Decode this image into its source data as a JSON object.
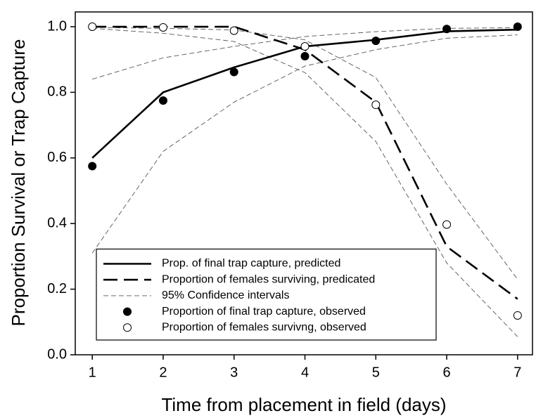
{
  "chart_data": {
    "type": "line",
    "x_label": "Time from placement in field (days)",
    "y_label": "Proportion Survival or Trap Capture",
    "x": [
      1,
      2,
      3,
      4,
      5,
      6,
      7
    ],
    "xlim": [
      0.76,
      7.21
    ],
    "xticks": [
      1,
      2,
      3,
      4,
      5,
      6,
      7
    ],
    "ylim": [
      0,
      1.045
    ],
    "yticks": [
      {
        "value": 0,
        "label": "0.0"
      },
      0.2,
      0.4,
      0.6,
      0.8,
      {
        "value": 1,
        "label": "1.0"
      }
    ],
    "legend_position": "lower left",
    "series": [
      {
        "name": "Prop. of final trap capture, predicted",
        "color": "#000000",
        "kind": "line",
        "dash": "solid",
        "values": [
          0.6,
          0.8,
          0.876,
          0.94,
          0.96,
          0.986,
          0.991
        ]
      },
      {
        "name": "Proportion of females surviving, predicated",
        "color": "#000000",
        "kind": "line",
        "dash": "dashed",
        "values": [
          1.0,
          1.0,
          1.0,
          0.93,
          0.77,
          0.33,
          0.17
        ]
      },
      {
        "name": "Proportion of final trap capture, observed",
        "color": "#000000",
        "kind": "marker",
        "fill": "filled",
        "values": [
          0.575,
          0.775,
          0.862,
          0.91,
          0.957,
          0.993,
          1.0
        ]
      },
      {
        "name": "Proportion of females survivng, observed",
        "color": "#000000",
        "kind": "marker",
        "fill": "open",
        "values": [
          1.0,
          0.998,
          0.988,
          0.94,
          0.762,
          0.397,
          0.12
        ]
      }
    ],
    "confidence_intervals": {
      "name": "95% Confidence intervals",
      "color": "#555555",
      "lines": [
        [
          0.84,
          0.905,
          0.94,
          0.97,
          0.985,
          0.995,
          0.997
        ],
        [
          0.31,
          0.62,
          0.77,
          0.88,
          0.93,
          0.965,
          0.975
        ],
        [
          0.998,
          0.995,
          0.99,
          0.96,
          0.845,
          0.52,
          0.23
        ],
        [
          0.995,
          0.98,
          0.955,
          0.86,
          0.65,
          0.28,
          0.055
        ]
      ]
    }
  }
}
